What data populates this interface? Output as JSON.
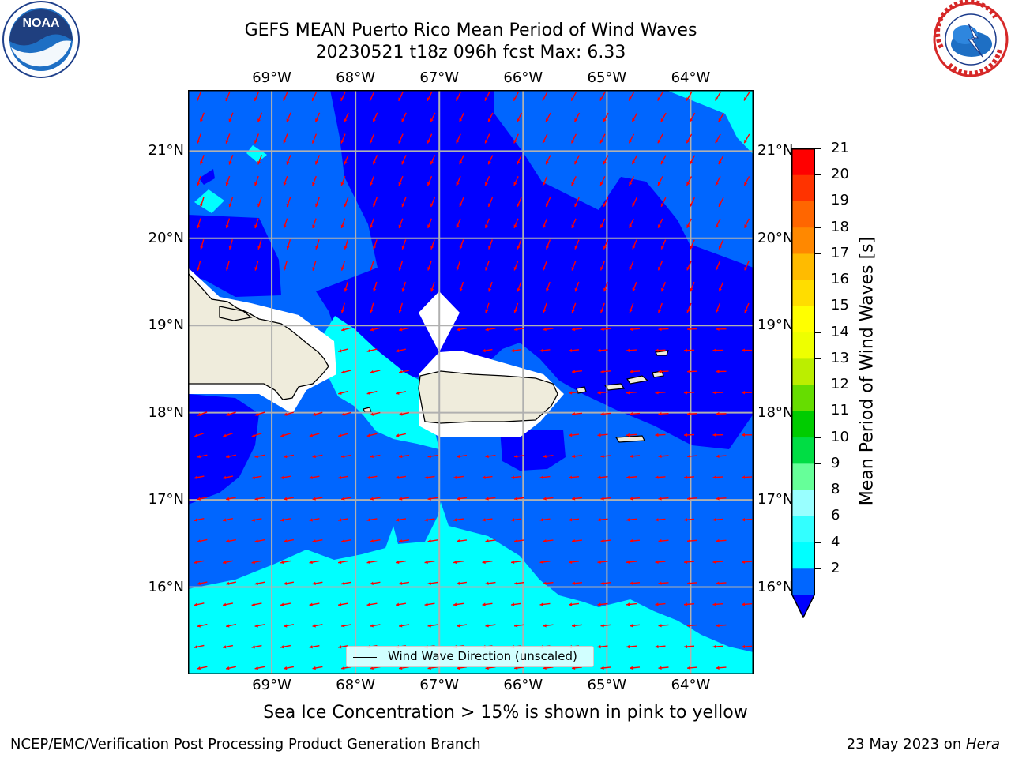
{
  "title": {
    "line1": "GEFS MEAN Puerto Rico Mean Period of Wind Waves",
    "line2": "20230521 t18z 096h fcst   Max: 6.33"
  },
  "logos": {
    "noaa_text": "NOAA",
    "nws_text": "NATIONAL WEATHER SERVICE"
  },
  "map": {
    "lon_ticks": [
      "69°W",
      "68°W",
      "67°W",
      "66°W",
      "65°W",
      "64°W"
    ],
    "lat_ticks": [
      "21°N",
      "20°N",
      "19°N",
      "18°N",
      "17°N",
      "16°N"
    ],
    "lon_values": [
      -69,
      -68,
      -67,
      -66,
      -65,
      -64
    ],
    "lat_values": [
      21,
      20,
      19,
      18,
      17,
      16
    ],
    "lon_range": [
      -70.0,
      -63.25
    ],
    "lat_range": [
      15.0,
      21.7
    ],
    "arrow_color": "#ff0000",
    "land_color": "#efecdc",
    "grid_color": "#b0b0b0"
  },
  "colorbar": {
    "title": "Mean Period of Wind Waves [s]",
    "labels": [
      "21",
      "20",
      "19",
      "18",
      "17",
      "16",
      "15",
      "14",
      "13",
      "12",
      "11",
      "10",
      "9",
      "8",
      "6",
      "4",
      "2"
    ],
    "levels": [
      2,
      4,
      6,
      8,
      9,
      10,
      11,
      12,
      13,
      14,
      15,
      16,
      17,
      18,
      19,
      20,
      21
    ],
    "colors": [
      "#0066ff",
      "#00ffff",
      "#33ffff",
      "#99ffff",
      "#66ff99",
      "#00dd44",
      "#00cc00",
      "#66dd00",
      "#bbee00",
      "#eeff00",
      "#ffff00",
      "#ffdd00",
      "#ffbb00",
      "#ff8800",
      "#ff6600",
      "#ff3300",
      "#ff0000"
    ],
    "under_color": "#0000ff"
  },
  "legend": {
    "label": "Wind Wave Direction (unscaled)"
  },
  "caption": "Sea Ice Concentration > 15% is shown in pink to yellow",
  "footer": {
    "left": "NCEP/EMC/Verification Post Processing Product Generation Branch",
    "date": "23 May 2023 on ",
    "machine": "Hera"
  }
}
